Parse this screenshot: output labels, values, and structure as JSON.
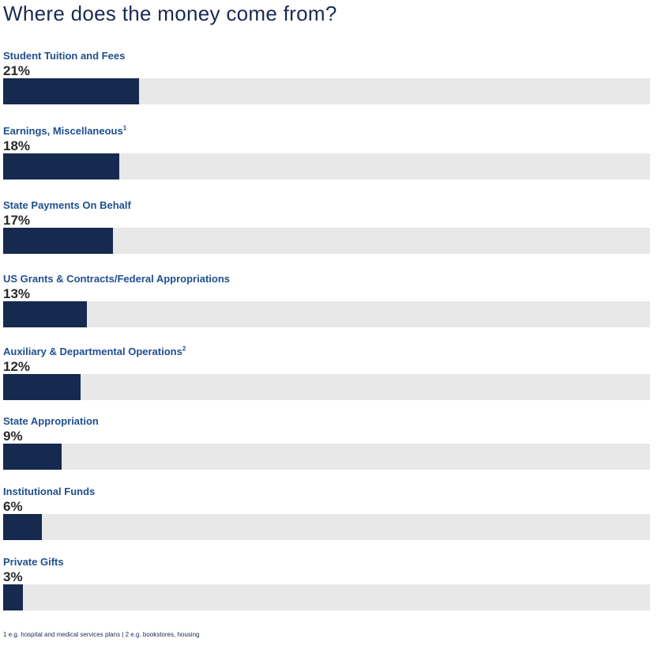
{
  "chart_data": {
    "type": "bar",
    "orientation": "horizontal",
    "title": "Where does the money come from?",
    "categories": [
      "Student Tuition and Fees",
      "Earnings, Miscellaneous",
      "State Payments On Behalf",
      "US Grants & Contracts/Federal Appropriations",
      "Auxiliary & Departmental Operations",
      "State Appropriation",
      "Institutional Funds",
      "Private Gifts"
    ],
    "superscripts": [
      "",
      "1",
      "",
      "",
      "2",
      "",
      "",
      ""
    ],
    "values": [
      21,
      18,
      17,
      13,
      12,
      9,
      6,
      3
    ],
    "value_labels": [
      "21%",
      "18%",
      "17%",
      "13%",
      "12%",
      "9%",
      "6%",
      "3%"
    ],
    "unit": "%",
    "xlim": [
      0,
      100
    ],
    "grid": false,
    "colors": {
      "fill": "#16294f",
      "track": "#e8e8e9",
      "label": "#1f4f8f",
      "title": "#1a2a52"
    }
  },
  "footnotes": {
    "note1": "1 e.g. hospital and medical services plans",
    "separator": " | ",
    "note2": "2 e.g. bookstores, housing"
  }
}
